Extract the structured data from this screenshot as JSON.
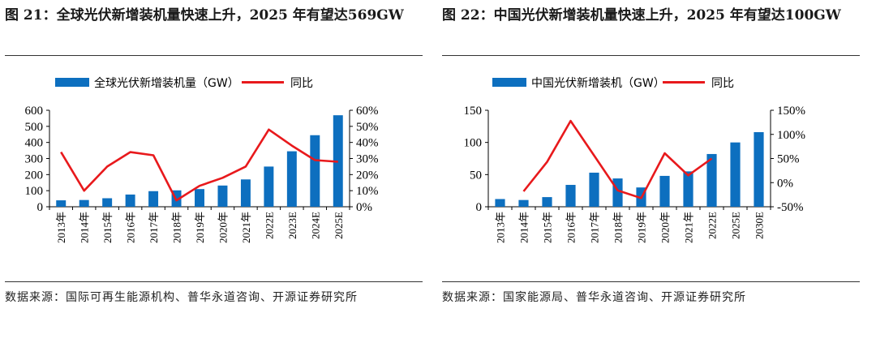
{
  "figures": [
    {
      "title": "图 21：全球光伏新增装机量快速上升，2025 年有望达569GW",
      "source": "数据来源：国际可再生能源机构、普华永道咨询、开源证券研究所"
    },
    {
      "title": "图 22：中国光伏新增装机量快速上升，2025 年有望达100GW",
      "source": "数据来源：国家能源局、普华永道咨询、开源证券研究所"
    }
  ],
  "colors": {
    "bar": "#0d6fbf",
    "line": "#e8191c",
    "axis": "#000000"
  },
  "chart_data": [
    {
      "type": "bar",
      "categories": [
        "2013年",
        "2014年",
        "2015年",
        "2016年",
        "2017年",
        "2018年",
        "2019年",
        "2020年",
        "2021年",
        "2022E",
        "2023E",
        "2024E",
        "2025E"
      ],
      "series": [
        {
          "name": "全球光伏新增装机量（GW）",
          "type": "bar",
          "axis": "left",
          "values": [
            40,
            42,
            53,
            76,
            97,
            102,
            110,
            132,
            170,
            250,
            345,
            445,
            569
          ]
        },
        {
          "name": "同比",
          "type": "line",
          "axis": "right",
          "values": [
            0.34,
            0.1,
            0.25,
            0.34,
            0.32,
            0.04,
            0.13,
            0.18,
            0.25,
            0.48,
            0.38,
            0.29,
            0.28
          ]
        }
      ],
      "yleft": {
        "ticks": [
          "0",
          "100",
          "200",
          "300",
          "400",
          "500",
          "600"
        ],
        "ylim": [
          0,
          600
        ]
      },
      "yright": {
        "ticks": [
          "0%",
          "10%",
          "20%",
          "30%",
          "40%",
          "50%",
          "60%"
        ],
        "ylim": [
          0,
          0.6
        ]
      },
      "legend": "top"
    },
    {
      "type": "bar",
      "categories": [
        "2013年",
        "2014年",
        "2015年",
        "2016年",
        "2017年",
        "2018年",
        "2019年",
        "2020年",
        "2021年",
        "2022E",
        "2025E",
        "2030E"
      ],
      "series": [
        {
          "name": "中国光伏新增装机（GW）",
          "type": "bar",
          "axis": "left",
          "values": [
            12,
            10.5,
            15,
            34,
            53,
            44,
            30,
            48,
            55,
            82,
            100,
            116
          ]
        },
        {
          "name": "同比",
          "type": "line",
          "axis": "right",
          "values": [
            null,
            -0.18,
            0.43,
            1.28,
            0.56,
            -0.16,
            -0.32,
            0.61,
            0.15,
            0.5,
            null,
            null
          ]
        }
      ],
      "yleft": {
        "ticks": [
          "0",
          "50",
          "100",
          "150"
        ],
        "ylim": [
          0,
          150
        ]
      },
      "yright": {
        "ticks": [
          "-50%",
          "0%",
          "50%",
          "100%",
          "150%"
        ],
        "ylim": [
          -0.5,
          1.5
        ]
      },
      "legend": "top"
    }
  ]
}
